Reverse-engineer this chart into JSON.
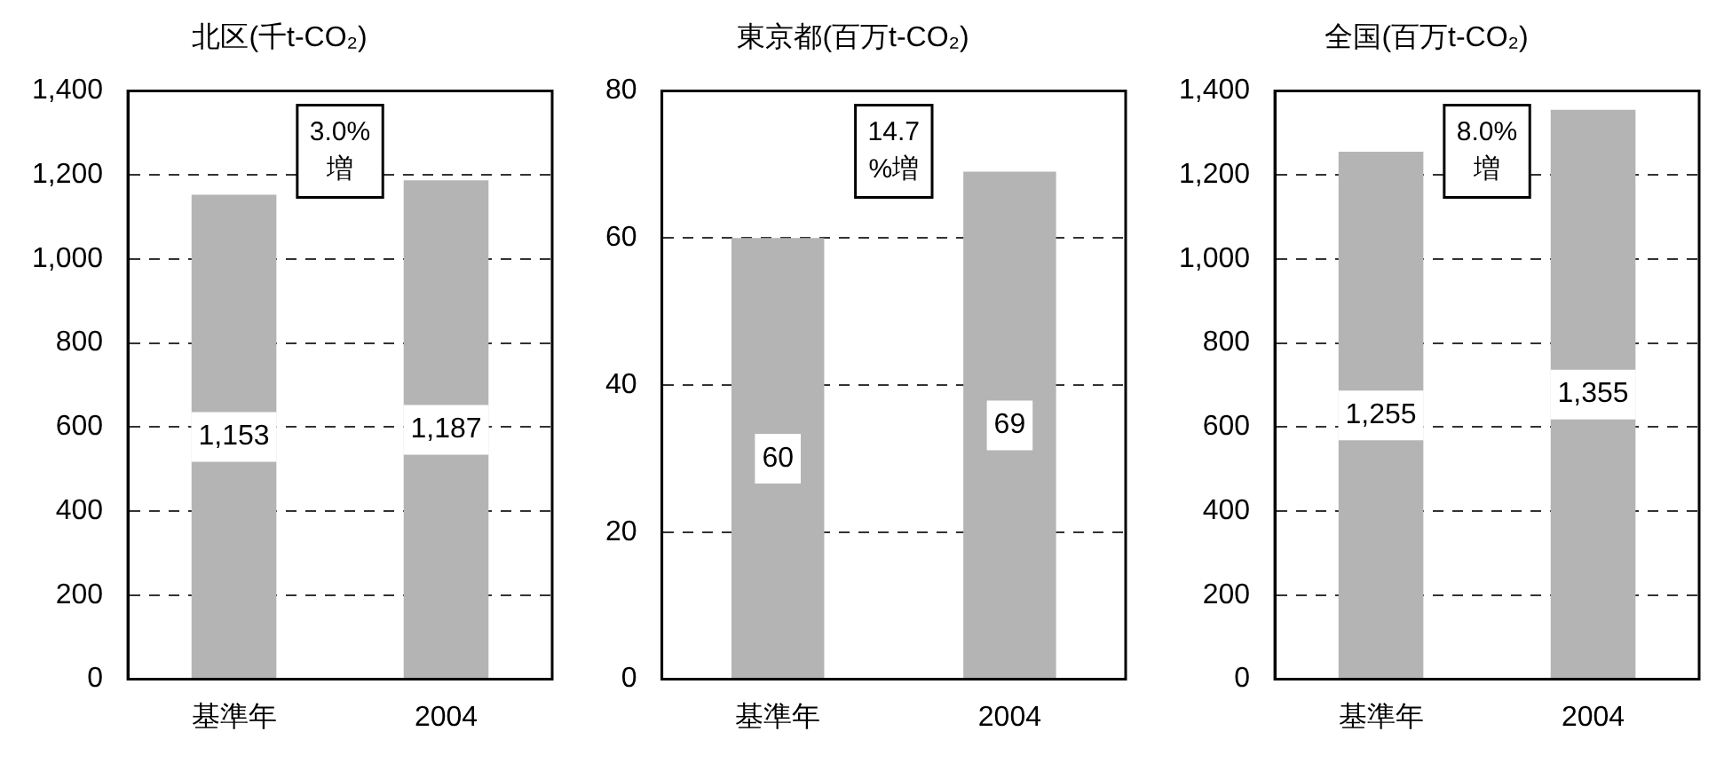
{
  "chart_data": [
    {
      "type": "bar",
      "title": "北区(千t-CO₂)",
      "categories": [
        "基準年",
        "2004"
      ],
      "values": [
        1153,
        1187
      ],
      "value_labels": [
        "1,153",
        "1,187"
      ],
      "color": "#b4b4b4",
      "ylim": [
        0,
        1400
      ],
      "yticks": [
        0,
        {
          "value": 200,
          "label": "200"
        },
        {
          "value": 400,
          "label": "400"
        },
        {
          "value": 600,
          "label": "600"
        },
        {
          "value": 800,
          "label": "800"
        },
        {
          "value": 1000,
          "label": "1,000"
        },
        {
          "value": 1200,
          "label": "1,200"
        },
        {
          "value": 1400,
          "label": "1,400"
        }
      ],
      "grid": "y",
      "legend": false,
      "annotations": [
        "3.0%\n増"
      ]
    },
    {
      "type": "bar",
      "title": "東京都(百万t-CO₂)",
      "categories": [
        "基準年",
        "2004"
      ],
      "values": [
        60,
        69
      ],
      "data_labels": true,
      "color": "#b4b4b4",
      "ylim": [
        0,
        80
      ],
      "yticks": [
        0,
        20,
        40,
        60,
        80
      ],
      "grid": "y",
      "legend": false,
      "annotations": [
        "14.7\n%増"
      ]
    },
    {
      "type": "bar",
      "title": "全国(百万t-CO₂)",
      "categories": [
        "基準年",
        "2004"
      ],
      "values": [
        1255,
        1355
      ],
      "value_labels": [
        "1,255",
        "1,355"
      ],
      "color": "#b4b4b4",
      "ylim": [
        0,
        1400
      ],
      "yticks": [
        0,
        {
          "value": 200,
          "label": "200"
        },
        {
          "value": 400,
          "label": "400"
        },
        {
          "value": 600,
          "label": "600"
        },
        {
          "value": 800,
          "label": "800"
        },
        {
          "value": 1000,
          "label": "1,000"
        },
        {
          "value": 1200,
          "label": "1,200"
        },
        {
          "value": 1400,
          "label": "1,400"
        }
      ],
      "grid": "y",
      "legend": false,
      "annotations": [
        "8.0%\n増"
      ]
    }
  ]
}
